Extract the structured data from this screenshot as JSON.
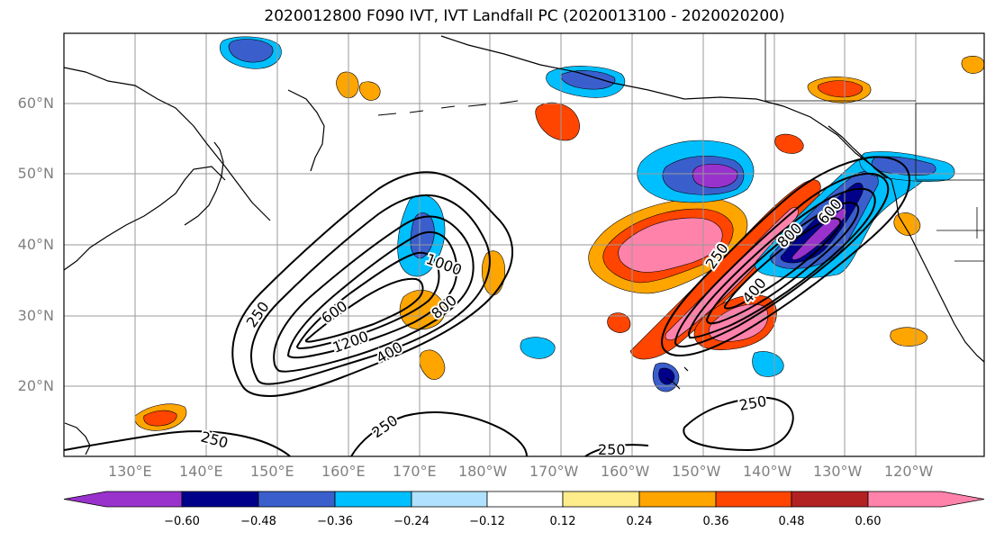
{
  "title": "2020012800 F090 IVT, IVT Landfall PC (2020013100 - 2020020200)",
  "lon_labels": [
    "130°E",
    "140°E",
    "150°E",
    "160°E",
    "170°E",
    "180°W",
    "170°W",
    "160°W",
    "150°W",
    "140°W",
    "130°W",
    "120°W"
  ],
  "lat_labels": [
    "20°N",
    "30°N",
    "40°N",
    "50°N",
    "60°N"
  ],
  "contour_labels": [
    {
      "text": "250",
      "name": "contour-label-250-west"
    },
    {
      "text": "600",
      "name": "contour-label-600-west"
    },
    {
      "text": "1000",
      "name": "contour-label-1000-west"
    },
    {
      "text": "800",
      "name": "contour-label-800-west"
    },
    {
      "text": "1200",
      "name": "contour-label-1200-west"
    },
    {
      "text": "400",
      "name": "contour-label-400-west"
    },
    {
      "text": "250",
      "name": "contour-label-250-southwest"
    },
    {
      "text": "250",
      "name": "contour-label-250-south"
    },
    {
      "text": "250",
      "name": "contour-label-250-southcentral"
    },
    {
      "text": "250",
      "name": "contour-label-250-southeast"
    },
    {
      "text": "250",
      "name": "contour-label-250-east"
    },
    {
      "text": "400",
      "name": "contour-label-400-east"
    },
    {
      "text": "800",
      "name": "contour-label-800-east"
    },
    {
      "text": "600",
      "name": "contour-label-600-east"
    }
  ],
  "colorbar": {
    "ticks": [
      "−0.60",
      "−0.48",
      "−0.36",
      "−0.24",
      "−0.12",
      "0.12",
      "0.24",
      "0.36",
      "0.48",
      "0.60"
    ],
    "colors": [
      "#9932CC",
      "#00008B",
      "#3A5FCD",
      "#00BFFF",
      "#B0E2FF",
      "#FFFFFF",
      "#FFEC8B",
      "#FFA500",
      "#FF4500",
      "#B22222",
      "#FF82AB"
    ]
  }
}
